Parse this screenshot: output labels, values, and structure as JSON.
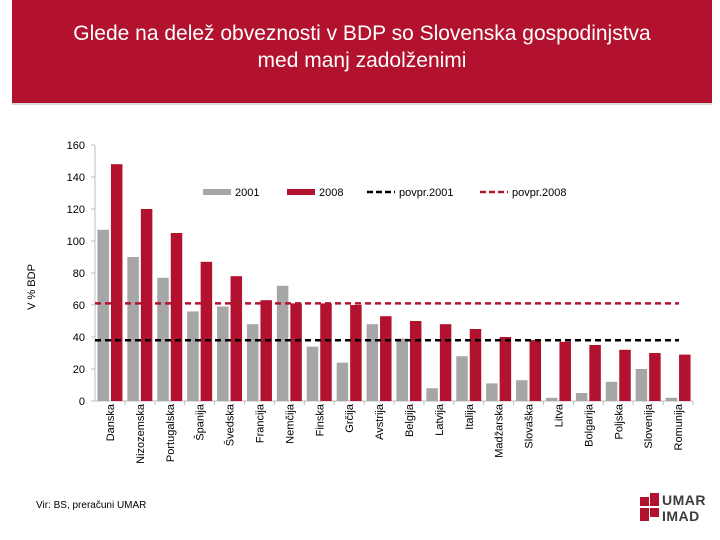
{
  "header": {
    "title_line1": "Glede na delež obveznosti v BDP so Slovenska gospodinjstva",
    "title_line2": "med manj zadolženimi"
  },
  "footer": {
    "source": "Vir: BS, preračuni UMAR"
  },
  "logo": {
    "line1": "UMAR",
    "line2": "IMAD"
  },
  "colors": {
    "brand_red": "#b3122e",
    "bar_2001": "#a6a6a6",
    "bar_2008": "#b3122e",
    "avg_2001": "#000000",
    "avg_2008": "#b3122e"
  },
  "chart_data": {
    "type": "bar",
    "title": "",
    "xlabel": "",
    "ylabel": "V % BDP",
    "ylim": [
      0,
      160
    ],
    "yticks": [
      0,
      20,
      40,
      60,
      80,
      100,
      120,
      140,
      160
    ],
    "legend_position": "top",
    "categories": [
      "Danska",
      "Nizozemska",
      "Portugalska",
      "Španija",
      "Švedska",
      "Francija",
      "Nemčija",
      "Finska",
      "Grčija",
      "Avstrija",
      "Belgija",
      "Latvija",
      "Italija",
      "Madžarska",
      "Slovaška",
      "Litva",
      "Bolgarija",
      "Poljska",
      "Slovenija",
      "Romunija"
    ],
    "series": [
      {
        "name": "2001",
        "values": [
          107,
          90,
          77,
          56,
          59,
          48,
          72,
          34,
          24,
          48,
          39,
          8,
          28,
          11,
          13,
          2,
          5,
          12,
          20,
          2
        ]
      },
      {
        "name": "2008",
        "values": [
          148,
          120,
          105,
          87,
          78,
          63,
          61,
          61,
          60,
          53,
          50,
          48,
          45,
          40,
          38,
          37,
          35,
          32,
          30,
          29
        ]
      }
    ],
    "reference_lines": [
      {
        "name": "povpr.2001",
        "value": 38
      },
      {
        "name": "povpr.2008",
        "value": 61
      }
    ]
  }
}
